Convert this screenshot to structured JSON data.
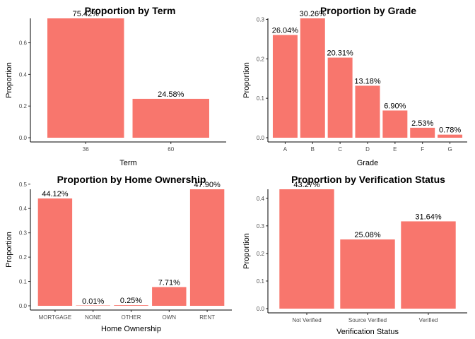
{
  "chart_data": [
    {
      "type": "bar",
      "title": "Proportion by Term",
      "xlabel": "Term",
      "ylabel": "Proportion",
      "categories": [
        "36",
        "60"
      ],
      "values": [
        0.7542,
        0.2458
      ],
      "labels": [
        "75.42%",
        "24.58%"
      ],
      "ylim": [
        0,
        0.7542
      ],
      "yticks": [
        0.0,
        0.2,
        0.4,
        0.6
      ],
      "ytick_labels": [
        "0.0",
        "0.2",
        "0.4",
        "0.6"
      ],
      "bar_color": "#F8766D"
    },
    {
      "type": "bar",
      "title": "Proportion by Grade",
      "xlabel": "Grade",
      "ylabel": "Proportion",
      "categories": [
        "A",
        "B",
        "C",
        "D",
        "E",
        "F",
        "G"
      ],
      "values": [
        0.2604,
        0.3026,
        0.2031,
        0.1318,
        0.069,
        0.0253,
        0.0078
      ],
      "labels": [
        "26.04%",
        "30.26%",
        "20.31%",
        "13.18%",
        "6.90%",
        "2.53%",
        "0.78%"
      ],
      "ylim": [
        0,
        0.3026
      ],
      "yticks": [
        0.0,
        0.1,
        0.2,
        0.3
      ],
      "ytick_labels": [
        "0.0",
        "0.1",
        "0.2",
        "0.3"
      ],
      "bar_color": "#F8766D"
    },
    {
      "type": "bar",
      "title": "Proportion by Home Ownership",
      "xlabel": "Home Ownership",
      "ylabel": "Proportion",
      "categories": [
        "MORTGAGE",
        "NONE",
        "OTHER",
        "OWN",
        "RENT"
      ],
      "values": [
        0.4412,
        0.0001,
        0.0025,
        0.0771,
        0.479
      ],
      "labels": [
        "44.12%",
        "0.01%",
        "0.25%",
        "7.71%",
        "47.90%"
      ],
      "ylim": [
        0,
        0.479
      ],
      "yticks": [
        0.0,
        0.1,
        0.2,
        0.3,
        0.4,
        0.5
      ],
      "ytick_labels": [
        "0.0",
        "0.1",
        "0.2",
        "0.3",
        "0.4",
        "0.5"
      ],
      "bar_color": "#F8766D"
    },
    {
      "type": "bar",
      "title": "Proportion by Verification Status",
      "xlabel": "Verification Status",
      "ylabel": "Proportion",
      "categories": [
        "Not Verified",
        "Source Verified",
        "Verified"
      ],
      "values": [
        0.4327,
        0.2508,
        0.3164
      ],
      "labels": [
        "43.27%",
        "25.08%",
        "31.64%"
      ],
      "ylim": [
        0,
        0.4327
      ],
      "yticks": [
        0.0,
        0.1,
        0.2,
        0.3,
        0.4
      ],
      "ytick_labels": [
        "0.0",
        "0.1",
        "0.2",
        "0.3",
        "0.4"
      ],
      "bar_color": "#F8766D"
    }
  ]
}
